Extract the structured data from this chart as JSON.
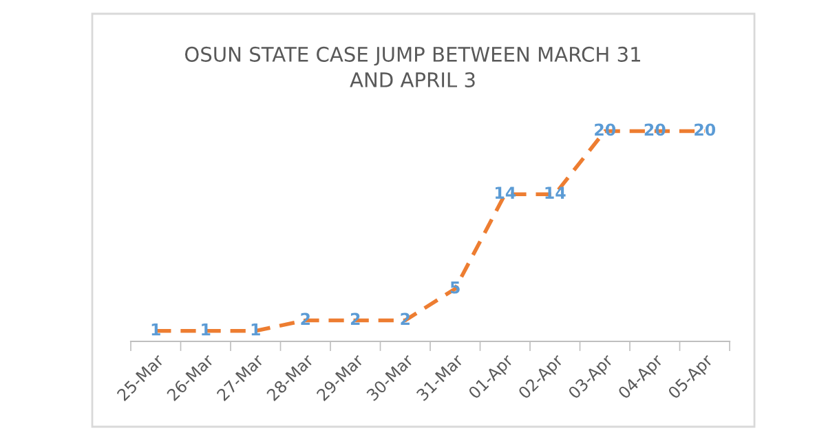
{
  "chart_data": {
    "type": "line",
    "title": "OSUN STATE CASE JUMP BETWEEN MARCH 31\nAND APRIL 3",
    "categories": [
      "25-Mar",
      "26-Mar",
      "27-Mar",
      "28-Mar",
      "29-Mar",
      "30-Mar",
      "31-Mar",
      "01-Apr",
      "02-Apr",
      "03-Apr",
      "04-Apr",
      "05-Apr"
    ],
    "series": [
      {
        "color": "#ed7d31",
        "values": [
          1,
          1,
          1,
          2,
          2,
          2,
          5,
          14,
          14,
          20,
          20,
          20
        ]
      }
    ],
    "data_labels": true,
    "line_style": "dashed",
    "grid": false,
    "tick_labels": "x"
  }
}
